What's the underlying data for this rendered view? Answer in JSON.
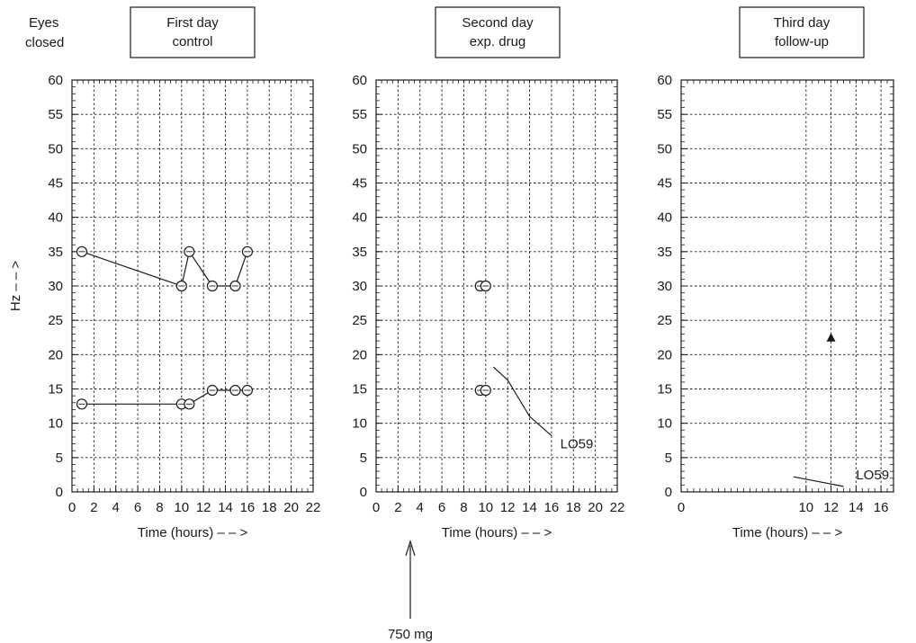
{
  "figure": {
    "corner_label_line1": "Eyes",
    "corner_label_line2": "closed",
    "ylabel": "Hz – – >",
    "dose_label": "750 mg"
  },
  "chart_data": [
    {
      "type": "line",
      "title": [
        "First day",
        "control"
      ],
      "xlabel": "Time (hours)  – – >",
      "ylabel": "Hz – – >",
      "xlim": [
        0,
        22
      ],
      "ylim": [
        0,
        60
      ],
      "xticks": [
        0,
        2,
        4,
        6,
        8,
        10,
        12,
        14,
        16,
        18,
        20,
        22
      ],
      "yticks": [
        0,
        5,
        10,
        15,
        20,
        25,
        30,
        35,
        40,
        45,
        50,
        55,
        60
      ],
      "grid": true,
      "series": [
        {
          "marker": "circle",
          "x": [
            0.9,
            10,
            10.7,
            12.8,
            14.9,
            16
          ],
          "y": [
            35,
            30,
            35,
            30,
            30,
            35
          ]
        },
        {
          "marker": "circle",
          "x": [
            0.9,
            10,
            10.7,
            12.8,
            14.9,
            16
          ],
          "y": [
            12.8,
            12.8,
            12.8,
            14.8,
            14.8,
            14.8
          ]
        }
      ],
      "annotations": []
    },
    {
      "type": "line",
      "title": [
        "Second day",
        "exp. drug"
      ],
      "xlabel": "Time (hours)  – – >",
      "ylabel": "",
      "xlim": [
        0,
        22
      ],
      "ylim": [
        0,
        60
      ],
      "xticks": [
        0,
        2,
        4,
        6,
        8,
        10,
        12,
        14,
        16,
        18,
        20,
        22
      ],
      "yticks": [
        0,
        5,
        10,
        15,
        20,
        25,
        30,
        35,
        40,
        45,
        50,
        55,
        60
      ],
      "grid": true,
      "series": [
        {
          "marker": "circle",
          "line": false,
          "x": [
            9.5,
            10
          ],
          "y": [
            30,
            30
          ]
        },
        {
          "marker": "circle",
          "line": false,
          "x": [
            9.5,
            10
          ],
          "y": [
            14.8,
            14.8
          ]
        },
        {
          "marker": "none",
          "name": "LO59",
          "x": [
            10.7,
            12,
            14,
            16
          ],
          "y": [
            18.2,
            16.3,
            11,
            8.2
          ]
        }
      ],
      "annotations": [
        {
          "text": "LO59",
          "x": 16.8,
          "y": 7
        }
      ],
      "event_arrow": {
        "x": 10,
        "label": "750 mg"
      }
    },
    {
      "type": "line",
      "title": [
        "Third day",
        "follow-up"
      ],
      "xlabel": "Time (hours)  – – >",
      "ylabel": "",
      "xlim": [
        0,
        17
      ],
      "ylim": [
        0,
        60
      ],
      "xticks": [
        0,
        10,
        12,
        14,
        16
      ],
      "yticks": [
        0,
        5,
        10,
        15,
        20,
        25,
        30,
        35,
        40,
        45,
        50,
        55,
        60
      ],
      "grid": true,
      "series": [
        {
          "marker": "triangle",
          "line": false,
          "x": [
            12
          ],
          "y": [
            22.5
          ]
        },
        {
          "marker": "none",
          "name": "LO59",
          "x": [
            9,
            13
          ],
          "y": [
            2.2,
            0.8
          ]
        }
      ],
      "annotations": [
        {
          "text": "LO59",
          "x": 14,
          "y": 2.5
        }
      ]
    }
  ]
}
